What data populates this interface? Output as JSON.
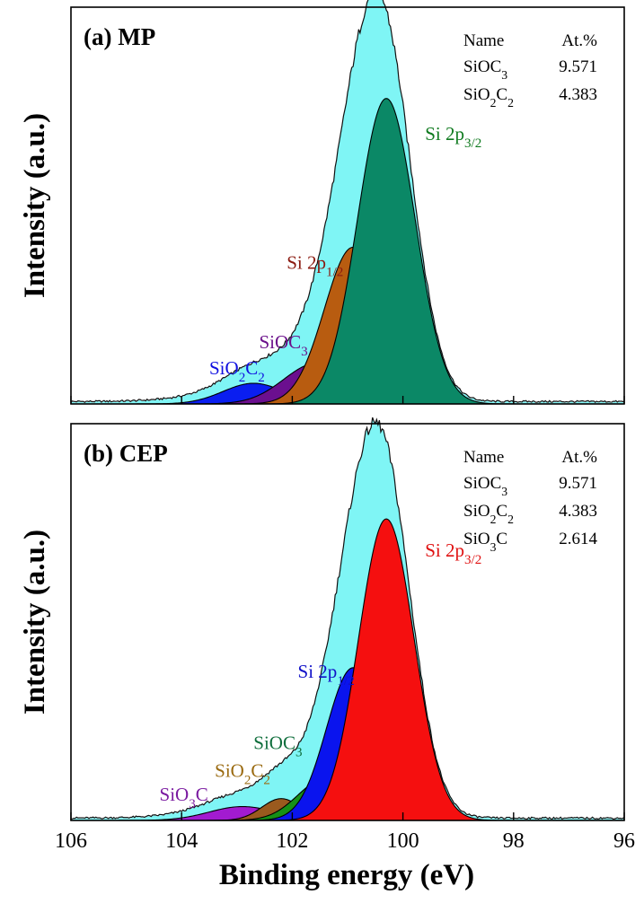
{
  "figure": {
    "xlabel": "Binding energy (eV)",
    "ylabel": "Intensity (a.u.)",
    "xticks": [
      "106",
      "104",
      "102",
      "100",
      "98",
      "96"
    ]
  },
  "chart_data": [
    {
      "type": "area",
      "title": "(a)  MP",
      "xlabel": "Binding energy (eV)",
      "ylabel": "Intensity (a.u.)",
      "xlim": [
        106,
        96
      ],
      "x_reversed": true,
      "envelope_color": "#7FF5F5",
      "table": {
        "header": [
          "Name",
          "At.%"
        ],
        "rows": [
          [
            "SiOC3",
            "9.571"
          ],
          [
            "SiO2C2",
            "4.383"
          ]
        ]
      },
      "series": [
        {
          "name": "SiO2C2",
          "center": 102.7,
          "height": 0.052,
          "sigma": 0.55,
          "color": "#0A1EF0",
          "label_color": "#1010E0"
        },
        {
          "name": "SiOC3",
          "center": 101.55,
          "height": 0.103,
          "sigma": 0.6,
          "color": "#6B0F8F",
          "label_color": "#6A0F8A"
        },
        {
          "name": "Si 2p1/2",
          "center": 100.9,
          "height": 0.395,
          "sigma": 0.52,
          "color": "#B85C10",
          "label_color": "#8B1A10"
        },
        {
          "name": "Si 2p3/2",
          "center": 100.3,
          "height": 0.77,
          "sigma": 0.52,
          "color": "#0B8866",
          "label_color": "#0F7A1F"
        }
      ],
      "peak_labels": [
        {
          "text": "SiO2C2",
          "x": 103.5,
          "y": 0.075
        },
        {
          "text": "SiOC3",
          "x": 102.6,
          "y": 0.14
        },
        {
          "text": "Si 2p1/2",
          "x": 102.1,
          "y": 0.34
        },
        {
          "text": "Si 2p3/2",
          "x": 99.6,
          "y": 0.665
        }
      ]
    },
    {
      "type": "area",
      "title": "(b)  CEP",
      "xlabel": "Binding energy (eV)",
      "ylabel": "Intensity (a.u.)",
      "xlim": [
        106,
        96
      ],
      "x_reversed": true,
      "envelope_color": "#7FF5F5",
      "table": {
        "header": [
          "Name",
          "At.%"
        ],
        "rows": [
          [
            "SiOC3",
            "9.571"
          ],
          [
            "SiO2C2",
            "4.383"
          ],
          [
            "SiO3C",
            "2.614"
          ]
        ]
      },
      "series": [
        {
          "name": "SiO3C",
          "center": 102.9,
          "height": 0.035,
          "sigma": 0.6,
          "color": "#A21BD0",
          "label_color": "#7A1AA0"
        },
        {
          "name": "SiO2C2",
          "center": 102.2,
          "height": 0.055,
          "sigma": 0.35,
          "color": "#9A5A1E",
          "label_color": "#9A6A10"
        },
        {
          "name": "SiOC3",
          "center": 101.4,
          "height": 0.105,
          "sigma": 0.5,
          "color": "#169016",
          "label_color": "#0F6E3C"
        },
        {
          "name": "Si 2p1/2",
          "center": 100.9,
          "height": 0.385,
          "sigma": 0.48,
          "color": "#0A14EE",
          "label_color": "#1010C8"
        },
        {
          "name": "Si 2p3/2",
          "center": 100.3,
          "height": 0.76,
          "sigma": 0.5,
          "color": "#F50F0F",
          "label_color": "#E01010"
        }
      ],
      "peak_labels": [
        {
          "text": "SiO3C",
          "x": 104.4,
          "y": 0.05
        },
        {
          "text": "SiO2C2",
          "x": 103.4,
          "y": 0.11
        },
        {
          "text": "SiOC3",
          "x": 102.7,
          "y": 0.18
        },
        {
          "text": "Si 2p1/2",
          "x": 101.9,
          "y": 0.36
        },
        {
          "text": "Si 2p3/2",
          "x": 99.6,
          "y": 0.665
        }
      ]
    }
  ]
}
